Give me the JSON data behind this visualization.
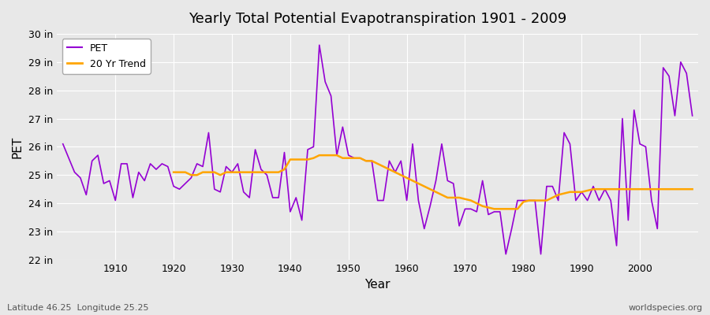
{
  "title": "Yearly Total Potential Evapotranspiration 1901 - 2009",
  "xlabel": "Year",
  "ylabel": "PET",
  "years": [
    1901,
    1902,
    1903,
    1904,
    1905,
    1906,
    1907,
    1908,
    1909,
    1910,
    1911,
    1912,
    1913,
    1914,
    1915,
    1916,
    1917,
    1918,
    1919,
    1920,
    1921,
    1922,
    1923,
    1924,
    1925,
    1926,
    1927,
    1928,
    1929,
    1930,
    1931,
    1932,
    1933,
    1934,
    1935,
    1936,
    1937,
    1938,
    1939,
    1940,
    1941,
    1942,
    1943,
    1944,
    1945,
    1946,
    1947,
    1948,
    1949,
    1950,
    1951,
    1952,
    1953,
    1954,
    1955,
    1956,
    1957,
    1958,
    1959,
    1960,
    1961,
    1962,
    1963,
    1964,
    1965,
    1966,
    1967,
    1968,
    1969,
    1970,
    1971,
    1972,
    1973,
    1974,
    1975,
    1976,
    1977,
    1978,
    1979,
    1980,
    1981,
    1982,
    1983,
    1984,
    1985,
    1986,
    1987,
    1988,
    1989,
    1990,
    1991,
    1992,
    1993,
    1994,
    1995,
    1996,
    1997,
    1998,
    1999,
    2000,
    2001,
    2002,
    2003,
    2004,
    2005,
    2006,
    2007,
    2008,
    2009
  ],
  "pet": [
    26.1,
    25.6,
    25.1,
    24.9,
    24.3,
    25.5,
    25.7,
    24.7,
    24.8,
    24.1,
    25.4,
    25.4,
    24.2,
    25.1,
    24.8,
    25.4,
    25.2,
    25.4,
    25.3,
    24.6,
    24.5,
    24.7,
    24.9,
    25.4,
    25.3,
    26.5,
    24.5,
    24.4,
    25.3,
    25.1,
    25.4,
    24.4,
    24.2,
    25.9,
    25.2,
    25.0,
    24.2,
    24.2,
    25.8,
    23.7,
    24.2,
    23.4,
    25.9,
    26.0,
    29.6,
    28.3,
    27.8,
    25.7,
    26.7,
    25.7,
    25.6,
    25.6,
    25.5,
    25.5,
    24.1,
    24.1,
    25.5,
    25.1,
    25.5,
    24.1,
    26.1,
    24.1,
    23.1,
    23.9,
    24.8,
    26.1,
    24.8,
    24.7,
    23.2,
    23.8,
    23.8,
    23.7,
    24.8,
    23.6,
    23.7,
    23.7,
    22.2,
    23.1,
    24.1,
    24.1,
    24.1,
    24.1,
    22.2,
    24.6,
    24.6,
    24.1,
    26.5,
    26.1,
    24.1,
    24.4,
    24.1,
    24.6,
    24.1,
    24.5,
    24.1,
    22.5,
    27.0,
    23.4,
    27.3,
    26.1,
    26.0,
    24.1,
    23.1,
    28.8,
    28.5,
    27.1,
    29.0,
    28.6,
    27.1
  ],
  "trend_years": [
    1920,
    1921,
    1922,
    1923,
    1924,
    1925,
    1926,
    1927,
    1928,
    1929,
    1930,
    1931,
    1932,
    1933,
    1934,
    1935,
    1936,
    1937,
    1938,
    1939,
    1940,
    1941,
    1942,
    1943,
    1944,
    1945,
    1946,
    1947,
    1948,
    1949,
    1950,
    1951,
    1952,
    1953,
    1954,
    1955,
    1956,
    1957,
    1958,
    1959,
    1960,
    1961,
    1962,
    1963,
    1964,
    1965,
    1966,
    1967,
    1968,
    1969,
    1970,
    1971,
    1972,
    1973,
    1974,
    1975,
    1976,
    1977,
    1978,
    1979,
    1980,
    1981,
    1982,
    1983,
    1984,
    1985,
    1986,
    1987,
    1988,
    1989,
    1990,
    1991,
    1992,
    1993,
    1994,
    1995,
    1996,
    1997,
    1998,
    1999,
    2000,
    2001,
    2002,
    2003,
    2004,
    2005,
    2006,
    2007,
    2008,
    2009
  ],
  "trend": [
    25.1,
    25.1,
    25.1,
    25.0,
    25.0,
    25.1,
    25.1,
    25.1,
    25.0,
    25.1,
    25.1,
    25.1,
    25.1,
    25.1,
    25.1,
    25.1,
    25.1,
    25.1,
    25.1,
    25.2,
    25.55,
    25.55,
    25.55,
    25.55,
    25.6,
    25.7,
    25.7,
    25.7,
    25.7,
    25.6,
    25.6,
    25.6,
    25.6,
    25.5,
    25.5,
    25.4,
    25.3,
    25.2,
    25.1,
    25.0,
    24.9,
    24.8,
    24.7,
    24.6,
    24.5,
    24.4,
    24.3,
    24.2,
    24.2,
    24.2,
    24.15,
    24.1,
    24.0,
    23.9,
    23.85,
    23.8,
    23.8,
    23.8,
    23.8,
    23.8,
    24.05,
    24.1,
    24.1,
    24.1,
    24.1,
    24.2,
    24.3,
    24.35,
    24.4,
    24.4,
    24.4,
    24.45,
    24.5,
    24.5,
    24.5,
    24.5,
    24.5,
    24.5,
    24.5,
    24.5,
    24.5,
    24.5,
    24.5,
    24.5,
    24.5,
    24.5,
    24.5,
    24.5,
    24.5,
    24.5
  ],
  "pet_color": "#9400D3",
  "trend_color": "#FFA500",
  "bg_color": "#E8E8E8",
  "grid_color": "#FFFFFF",
  "ylim": [
    22,
    30
  ],
  "yticks": [
    22,
    23,
    24,
    25,
    26,
    27,
    28,
    29,
    30
  ],
  "ytick_labels": [
    "22 in",
    "23 in",
    "24 in",
    "25 in",
    "26 in",
    "27 in",
    "28 in",
    "29 in",
    "30 in"
  ],
  "xticks": [
    1910,
    1920,
    1930,
    1940,
    1950,
    1960,
    1970,
    1980,
    1990,
    2000
  ],
  "caption_left": "Latitude 46.25  Longitude 25.25",
  "caption_right": "worldspecies.org",
  "legend_labels": [
    "PET",
    "20 Yr Trend"
  ]
}
